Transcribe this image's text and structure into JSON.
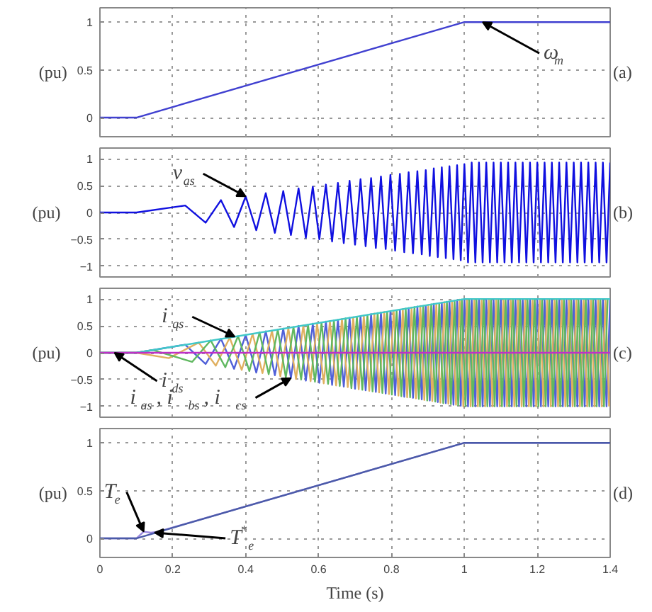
{
  "chart_data": [
    {
      "type": "line",
      "title": "(a)",
      "ylabel": "(pu)",
      "xlim": [
        0,
        1.4
      ],
      "ylim": [
        -0.2,
        1.15
      ],
      "xticks": [
        0,
        0.2,
        0.4,
        0.6,
        0.8,
        1,
        1.2,
        1.4
      ],
      "yticks": [
        0,
        0.5,
        1
      ],
      "grid": true,
      "tick_labels": "y",
      "annotations": [
        {
          "text": "ω$_{m}$",
          "x": 1.05,
          "y": 1.0
        }
      ],
      "series": [
        {
          "color": "#4040d0",
          "x": [
            0,
            0.1,
            1,
            1.4
          ],
          "values": [
            0,
            0,
            1,
            1
          ]
        }
      ]
    },
    {
      "type": "line",
      "title": "(b)",
      "ylabel": "(pu)",
      "xlim": [
        0,
        1.4
      ],
      "ylim": [
        -1.2,
        1.2
      ],
      "xticks": [
        0,
        0.2,
        0.4,
        0.6,
        0.8,
        1,
        1.2,
        1.4
      ],
      "yticks": [
        -1,
        -0.5,
        0,
        0.5,
        1
      ],
      "grid": true,
      "tick_labels": "y",
      "annotations": [
        {
          "text": "v$_{as}$",
          "x": 0.4,
          "y": 0.3
        }
      ],
      "series": [
        {
          "color": "#1010e0",
          "x": [
            0,
            0.1,
            0.234,
            0.29,
            0.332,
            0.368,
            0.4,
            0.429,
            0.455,
            0.48,
            0.503,
            0.524,
            0.545,
            0.565,
            0.584,
            0.602,
            0.62,
            0.637,
            0.653,
            0.669,
            0.685,
            0.7,
            0.715,
            0.729,
            0.744,
            0.757,
            0.771,
            0.784,
            0.797,
            0.81,
            0.823,
            0.835,
            0.847,
            0.859,
            0.871,
            0.883,
            0.894,
            0.905,
            0.916,
            0.927,
            0.938,
            0.949,
            0.959,
            0.97,
            0.98,
            0.99,
            1.0,
            1.01,
            1.02,
            1.03,
            1.04,
            1.05,
            1.06,
            1.07,
            1.08,
            1.09,
            1.1,
            1.11,
            1.12,
            1.13,
            1.14,
            1.15,
            1.16,
            1.17,
            1.18,
            1.19,
            1.2,
            1.21,
            1.22,
            1.23,
            1.24,
            1.25,
            1.26,
            1.27,
            1.28,
            1.29,
            1.3,
            1.31,
            1.32,
            1.33,
            1.34,
            1.35,
            1.36,
            1.37,
            1.38,
            1.39,
            1.4
          ],
          "values": [
            0,
            0,
            0.13,
            -0.19,
            0.23,
            -0.27,
            0.3,
            -0.33,
            0.36,
            -0.38,
            0.4,
            -0.42,
            0.45,
            -0.47,
            0.48,
            -0.5,
            0.52,
            -0.54,
            0.55,
            -0.57,
            0.59,
            -0.6,
            0.62,
            -0.63,
            0.64,
            -0.66,
            0.67,
            -0.68,
            0.7,
            -0.71,
            0.72,
            -0.74,
            0.75,
            -0.76,
            0.77,
            -0.78,
            0.79,
            -0.81,
            0.82,
            -0.83,
            0.84,
            -0.85,
            0.86,
            -0.87,
            0.88,
            -0.89,
            0.9,
            -0.93,
            0.93,
            -0.93,
            0.93,
            -0.93,
            0.93,
            -0.93,
            0.93,
            -0.93,
            0.93,
            -0.93,
            0.93,
            -0.93,
            0.93,
            -0.93,
            0.93,
            -0.93,
            0.93,
            -0.93,
            0.93,
            -0.93,
            0.93,
            -0.93,
            0.93,
            -0.93,
            0.93,
            -0.93,
            0.93,
            -0.93,
            0.93,
            -0.93,
            0.93,
            -0.93,
            0.93,
            -0.93,
            0.93,
            -0.93,
            0.93,
            -0.93,
            0.93
          ]
        }
      ]
    },
    {
      "type": "line",
      "title": "(c)",
      "ylabel": "(pu)",
      "xlim": [
        0,
        1.4
      ],
      "ylim": [
        -1.2,
        1.2
      ],
      "xticks": [
        0,
        0.2,
        0.4,
        0.6,
        0.8,
        1,
        1.2,
        1.4
      ],
      "yticks": [
        -1,
        -0.5,
        0,
        0.5,
        1
      ],
      "grid": true,
      "tick_labels": "y",
      "annotations": [
        {
          "text": "i$_{qs}$",
          "x": 0.37,
          "y": 0.3
        },
        {
          "text": "i$_{ds}$",
          "x": 0.04,
          "y": 0
        },
        {
          "text": "i$_{as}$, i$_{bs}$, i$_{cs}$",
          "x": 0.524,
          "y": -0.47
        }
      ],
      "series": [
        {
          "color": "#5060d8",
          "x": [
            0,
            0.1,
            0.234,
            0.29,
            0.332,
            0.368,
            0.4,
            0.429,
            0.455,
            0.48,
            0.503,
            0.524,
            0.545,
            0.565,
            0.584,
            0.602,
            0.62,
            0.637,
            0.653,
            0.669,
            0.685,
            0.7,
            0.715,
            0.729,
            0.744,
            0.757,
            0.771,
            0.784,
            0.797,
            0.81,
            0.823,
            0.835,
            0.847,
            0.859,
            0.871,
            0.883,
            0.894,
            0.905,
            0.916,
            0.927,
            0.938,
            0.949,
            0.959,
            0.97,
            0.98,
            0.99,
            1.0,
            1.01,
            1.02,
            1.03,
            1.04,
            1.05,
            1.06,
            1.07,
            1.08,
            1.09,
            1.1,
            1.11,
            1.12,
            1.13,
            1.14,
            1.15,
            1.16,
            1.17,
            1.18,
            1.19,
            1.2,
            1.21,
            1.22,
            1.23,
            1.24,
            1.25,
            1.26,
            1.27,
            1.28,
            1.29,
            1.3,
            1.31,
            1.32,
            1.33,
            1.34,
            1.35,
            1.36,
            1.37,
            1.38,
            1.39,
            1.4
          ],
          "values": [
            0,
            0,
            0.15,
            -0.21,
            0.26,
            -0.3,
            0.33,
            -0.37,
            0.4,
            -0.42,
            0.45,
            -0.47,
            0.5,
            -0.52,
            0.54,
            -0.56,
            0.58,
            -0.6,
            0.61,
            -0.63,
            0.65,
            -0.67,
            0.68,
            -0.7,
            0.72,
            -0.73,
            0.75,
            -0.76,
            0.77,
            -0.79,
            0.8,
            -0.82,
            0.83,
            -0.84,
            0.86,
            -0.87,
            0.88,
            -0.89,
            0.91,
            -0.92,
            0.93,
            -0.94,
            0.95,
            -0.97,
            0.98,
            -0.99,
            1.0,
            -1,
            1,
            -1,
            1,
            -1,
            1,
            -1,
            1,
            -1,
            1,
            -1,
            1,
            -1,
            1,
            -1,
            1,
            -1,
            1,
            -1,
            1,
            -1,
            1,
            -1,
            1,
            -1,
            1,
            -1,
            1,
            -1,
            1,
            -1,
            1,
            -1,
            1,
            -1,
            1,
            -1,
            1,
            -1,
            1
          ]
        },
        {
          "color": "#e0b060",
          "x": [
            0,
            0.1,
            0.189,
            0.271,
            0.318,
            0.356,
            0.389,
            0.419,
            0.446,
            0.472,
            0.495,
            0.517,
            0.538,
            0.558,
            0.578,
            0.596,
            0.614,
            0.631,
            0.648,
            0.664,
            0.68,
            0.695,
            0.71,
            0.724,
            0.739,
            0.753,
            0.766,
            0.78,
            0.793,
            0.806,
            0.819,
            0.831,
            0.843,
            0.855,
            0.867,
            0.879,
            0.89,
            0.901,
            0.912,
            0.923,
            0.934,
            0.945,
            0.956,
            0.966,
            0.977,
            0.987,
            0.997,
            1.007,
            1.017,
            1.027,
            1.037,
            1.047,
            1.057,
            1.067,
            1.077,
            1.087,
            1.097,
            1.107,
            1.117,
            1.127,
            1.137,
            1.147,
            1.157,
            1.167,
            1.177,
            1.187,
            1.197,
            1.207,
            1.217,
            1.227,
            1.237,
            1.247,
            1.257,
            1.267,
            1.277,
            1.287,
            1.297,
            1.307,
            1.317,
            1.327,
            1.337,
            1.347,
            1.357,
            1.367,
            1.377,
            1.387,
            1.397
          ],
          "values": [
            0,
            0,
            -0.1,
            0.19,
            -0.24,
            0.28,
            -0.32,
            0.35,
            -0.38,
            0.41,
            -0.44,
            0.46,
            -0.49,
            0.51,
            -0.53,
            0.55,
            -0.57,
            0.59,
            -0.61,
            0.63,
            -0.64,
            0.66,
            -0.68,
            0.69,
            -0.71,
            0.73,
            -0.74,
            0.76,
            -0.77,
            0.78,
            -0.8,
            0.81,
            -0.83,
            0.84,
            -0.85,
            0.87,
            -0.88,
            0.89,
            -0.9,
            0.91,
            -0.93,
            0.94,
            -0.95,
            0.96,
            -0.97,
            0.99,
            -1.0,
            1,
            -1,
            1,
            -1,
            1,
            -1,
            1,
            -1,
            1,
            -1,
            1,
            -1,
            1,
            -1,
            1,
            -1,
            1,
            -1,
            1,
            -1,
            1,
            -1,
            1,
            -1,
            1,
            -1,
            1,
            -1,
            1,
            -1,
            1,
            -1,
            1,
            -1,
            1,
            -1,
            1,
            -1,
            1,
            -1
          ]
        },
        {
          "color": "#60b860",
          "x": [
            0,
            0.1,
            0.145,
            0.253,
            0.304,
            0.344,
            0.379,
            0.41,
            0.438,
            0.463,
            0.488,
            0.51,
            0.531,
            0.552,
            0.571,
            0.59,
            0.608,
            0.626,
            0.642,
            0.658,
            0.674,
            0.69,
            0.705,
            0.72,
            0.734,
            0.748,
            0.762,
            0.775,
            0.788,
            0.801,
            0.814,
            0.827,
            0.839,
            0.851,
            0.863,
            0.875,
            0.887,
            0.898,
            0.909,
            0.92,
            0.931,
            0.942,
            0.952,
            0.963,
            0.973,
            0.983,
            0.993,
            1.003,
            1.013,
            1.023,
            1.033,
            1.043,
            1.053,
            1.063,
            1.073,
            1.083,
            1.093,
            1.103,
            1.113,
            1.123,
            1.133,
            1.143,
            1.153,
            1.163,
            1.173,
            1.183,
            1.193,
            1.203,
            1.213,
            1.223,
            1.233,
            1.243,
            1.253,
            1.263,
            1.273,
            1.283,
            1.293,
            1.303,
            1.313,
            1.323,
            1.333,
            1.343,
            1.353,
            1.363,
            1.373,
            1.383,
            1.393
          ],
          "values": [
            0,
            0,
            0.05,
            -0.17,
            0.23,
            -0.27,
            0.31,
            -0.34,
            0.38,
            -0.4,
            0.43,
            -0.46,
            0.48,
            -0.5,
            0.52,
            -0.54,
            0.56,
            -0.58,
            0.6,
            -0.62,
            0.64,
            -0.66,
            0.67,
            -0.69,
            0.7,
            -0.72,
            0.74,
            -0.75,
            0.76,
            -0.78,
            0.79,
            -0.81,
            0.82,
            -0.83,
            0.85,
            -0.86,
            0.87,
            -0.89,
            0.9,
            -0.91,
            0.92,
            -0.94,
            0.95,
            -0.96,
            0.97,
            -0.98,
            0.99,
            -1,
            1,
            -1,
            1,
            -1,
            1,
            -1,
            1,
            -1,
            1,
            -1,
            1,
            -1,
            1,
            -1,
            1,
            -1,
            1,
            -1,
            1,
            -1,
            1,
            -1,
            1,
            -1,
            1,
            -1,
            1,
            -1,
            1,
            -1,
            1,
            -1,
            1,
            -1,
            1,
            -1,
            1,
            -1,
            1
          ]
        },
        {
          "color": "#40c8c8",
          "x": [
            0,
            0.1,
            1,
            1.4
          ],
          "values": [
            0,
            0,
            1,
            1
          ]
        },
        {
          "color": "#c030c8",
          "x": [
            0,
            1.4
          ],
          "values": [
            0,
            0
          ]
        }
      ]
    },
    {
      "type": "line",
      "title": "(d)",
      "ylabel": "(pu)",
      "xlabel": "Time (s)",
      "xlim": [
        0,
        1.4
      ],
      "ylim": [
        -0.2,
        1.15
      ],
      "xticks": [
        0,
        0.2,
        0.4,
        0.6,
        0.8,
        1,
        1.2,
        1.4
      ],
      "yticks": [
        0,
        0.5,
        1
      ],
      "grid": true,
      "annotations": [
        {
          "text": "T$_{e}$",
          "x": 0.12,
          "y": 0.07
        },
        {
          "text": "T$^{*}$$_{e}$",
          "x": 0.15,
          "y": 0.06
        }
      ],
      "series": [
        {
          "color": "#9a88e0",
          "x": [
            0,
            0.1,
            0.12,
            0.14,
            0.16,
            1,
            1.4
          ],
          "values": [
            0,
            0,
            0.07,
            0.06,
            0.07,
            1,
            1
          ]
        },
        {
          "color": "#4a5aa8",
          "x": [
            0,
            0.1,
            1,
            1.4
          ],
          "values": [
            0,
            0,
            1,
            1
          ]
        }
      ]
    }
  ]
}
